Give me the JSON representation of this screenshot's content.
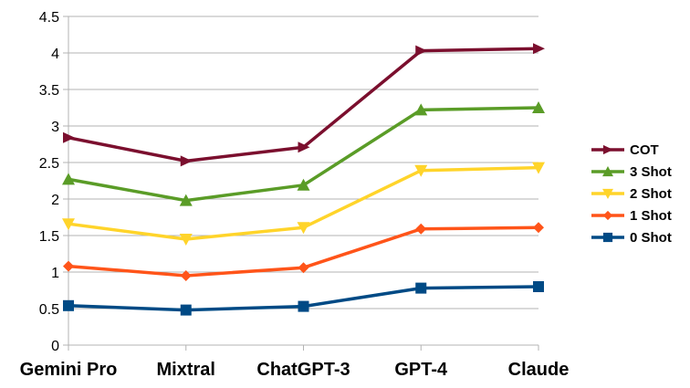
{
  "chart_data": {
    "type": "line",
    "categories": [
      "Gemini Pro",
      "Mixtral",
      "ChatGPT-3",
      "GPT-4",
      "Claude"
    ],
    "ylim": [
      0,
      4.5
    ],
    "yticks": [
      "0",
      "0.5",
      "1",
      "1.5",
      "2",
      "2.5",
      "3",
      "3.5",
      "4",
      "4.5"
    ],
    "grid": "horizontal",
    "legend_position": "right",
    "series": [
      {
        "name": "COT",
        "color": "#7b0f2e",
        "marker": "triangle-right",
        "values": [
          2.84,
          2.52,
          2.71,
          4.03,
          4.06
        ]
      },
      {
        "name": "3 Shot",
        "color": "#5a9c27",
        "marker": "triangle-up",
        "values": [
          2.27,
          1.98,
          2.19,
          3.22,
          3.25
        ]
      },
      {
        "name": "2 Shot",
        "color": "#ffd42a",
        "marker": "triangle-down",
        "values": [
          1.66,
          1.45,
          1.61,
          2.39,
          2.43
        ]
      },
      {
        "name": "1 Shot",
        "color": "#ff5419",
        "marker": "diamond",
        "values": [
          1.08,
          0.95,
          1.06,
          1.59,
          1.61
        ]
      },
      {
        "name": "0 Shot",
        "color": "#004a85",
        "marker": "square",
        "values": [
          0.54,
          0.48,
          0.53,
          0.78,
          0.8
        ]
      }
    ]
  }
}
